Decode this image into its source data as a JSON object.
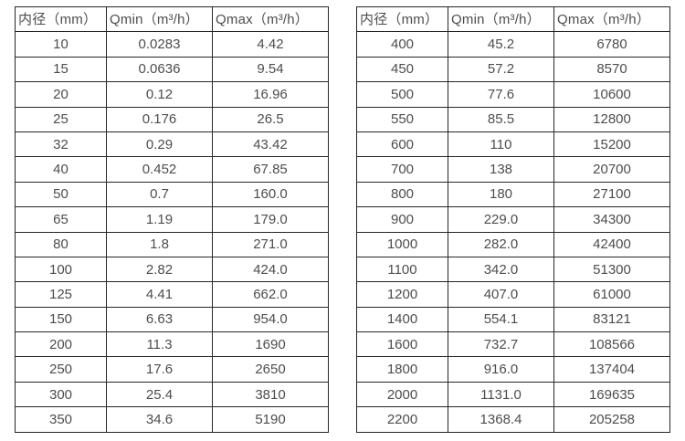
{
  "colors": {
    "background": "#ffffff",
    "border": "#262626",
    "text": "#4d4d4d"
  },
  "tables": [
    {
      "name": "small-diameters",
      "headers": [
        "内径（mm）",
        "Qmin（m³/h）",
        "Qmax（m³/h）"
      ],
      "rows": [
        [
          "10",
          "0.0283",
          "4.42"
        ],
        [
          "15",
          "0.0636",
          "9.54"
        ],
        [
          "20",
          "0.12",
          "16.96"
        ],
        [
          "25",
          "0.176",
          "26.5"
        ],
        [
          "32",
          "0.29",
          "43.42"
        ],
        [
          "40",
          "0.452",
          "67.85"
        ],
        [
          "50",
          "0.7",
          "160.0"
        ],
        [
          "65",
          "1.19",
          "179.0"
        ],
        [
          "80",
          "1.8",
          "271.0"
        ],
        [
          "100",
          "2.82",
          "424.0"
        ],
        [
          "125",
          "4.41",
          "662.0"
        ],
        [
          "150",
          "6.63",
          "954.0"
        ],
        [
          "200",
          "11.3",
          "1690"
        ],
        [
          "250",
          "17.6",
          "2650"
        ],
        [
          "300",
          "25.4",
          "3810"
        ],
        [
          "350",
          "34.6",
          "5190"
        ]
      ]
    },
    {
      "name": "large-diameters",
      "headers": [
        "内径（mm）",
        "Qmin（m³/h）",
        "Qmax（m³/h）"
      ],
      "rows": [
        [
          "400",
          "45.2",
          "6780"
        ],
        [
          "450",
          "57.2",
          "8570"
        ],
        [
          "500",
          "77.6",
          "10600"
        ],
        [
          "550",
          "85.5",
          "12800"
        ],
        [
          "600",
          "110",
          "15200"
        ],
        [
          "700",
          "138",
          "20700"
        ],
        [
          "800",
          "180",
          "27100"
        ],
        [
          "900",
          "229.0",
          "34300"
        ],
        [
          "1000",
          "282.0",
          "42400"
        ],
        [
          "1100",
          "342.0",
          "51300"
        ],
        [
          "1200",
          "407.0",
          "61000"
        ],
        [
          "1400",
          "554.1",
          "83121"
        ],
        [
          "1600",
          "732.7",
          "108566"
        ],
        [
          "1800",
          "916.0",
          "137404"
        ],
        [
          "2000",
          "1131.0",
          "169635"
        ],
        [
          "2200",
          "1368.4",
          "205258"
        ]
      ]
    }
  ]
}
